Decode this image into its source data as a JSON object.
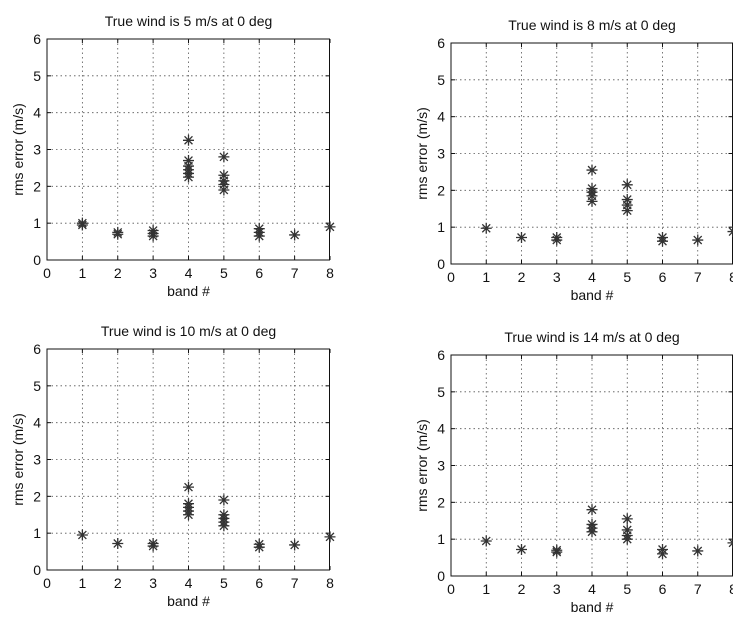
{
  "chart_data": [
    {
      "type": "scatter",
      "title": "True wind is 5 m/s at 0 deg",
      "xlabel": "band #",
      "ylabel": "rms error (m/s)",
      "xlim": [
        0,
        8
      ],
      "ylim": [
        0,
        6
      ],
      "xticks": [
        "0",
        "1",
        "2",
        "3",
        "4",
        "5",
        "6",
        "7",
        "8"
      ],
      "yticks": [
        "0",
        "1",
        "2",
        "3",
        "4",
        "5",
        "6"
      ],
      "grid": true,
      "points": [
        {
          "x": 1,
          "y": 0.95
        },
        {
          "x": 1,
          "y": 1.0
        },
        {
          "x": 2,
          "y": 0.7
        },
        {
          "x": 2,
          "y": 0.75
        },
        {
          "x": 3,
          "y": 0.65
        },
        {
          "x": 3,
          "y": 0.72
        },
        {
          "x": 3,
          "y": 0.8
        },
        {
          "x": 4,
          "y": 3.25
        },
        {
          "x": 4,
          "y": 2.7
        },
        {
          "x": 4,
          "y": 2.55
        },
        {
          "x": 4,
          "y": 2.45
        },
        {
          "x": 4,
          "y": 2.35
        },
        {
          "x": 4,
          "y": 2.25
        },
        {
          "x": 5,
          "y": 2.8
        },
        {
          "x": 5,
          "y": 2.3
        },
        {
          "x": 5,
          "y": 2.15
        },
        {
          "x": 5,
          "y": 2.05
        },
        {
          "x": 5,
          "y": 1.9
        },
        {
          "x": 6,
          "y": 0.85
        },
        {
          "x": 6,
          "y": 0.75
        },
        {
          "x": 6,
          "y": 0.65
        },
        {
          "x": 7,
          "y": 0.68
        },
        {
          "x": 8,
          "y": 0.9
        }
      ]
    },
    {
      "type": "scatter",
      "title": "True wind is 8 m/s at 0 deg",
      "xlabel": "band #",
      "ylabel": "rms error (m/s)",
      "xlim": [
        0,
        8
      ],
      "ylim": [
        0,
        6
      ],
      "xticks": [
        "0",
        "1",
        "2",
        "3",
        "4",
        "5",
        "6",
        "7",
        "8"
      ],
      "yticks": [
        "0",
        "1",
        "2",
        "3",
        "4",
        "5",
        "6"
      ],
      "grid": true,
      "points": [
        {
          "x": 1,
          "y": 0.97
        },
        {
          "x": 2,
          "y": 0.72
        },
        {
          "x": 3,
          "y": 0.65
        },
        {
          "x": 3,
          "y": 0.72
        },
        {
          "x": 4,
          "y": 2.55
        },
        {
          "x": 4,
          "y": 2.05
        },
        {
          "x": 4,
          "y": 1.95
        },
        {
          "x": 4,
          "y": 1.85
        },
        {
          "x": 4,
          "y": 1.7
        },
        {
          "x": 5,
          "y": 2.15
        },
        {
          "x": 5,
          "y": 1.75
        },
        {
          "x": 5,
          "y": 1.6
        },
        {
          "x": 5,
          "y": 1.45
        },
        {
          "x": 6,
          "y": 0.72
        },
        {
          "x": 6,
          "y": 0.62
        },
        {
          "x": 7,
          "y": 0.65
        },
        {
          "x": 8,
          "y": 0.88
        }
      ]
    },
    {
      "type": "scatter",
      "title": "True wind is 10 m/s at 0 deg",
      "xlabel": "band #",
      "ylabel": "rms error (m/s)",
      "xlim": [
        0,
        8
      ],
      "ylim": [
        0,
        6
      ],
      "xticks": [
        "0",
        "1",
        "2",
        "3",
        "4",
        "5",
        "6",
        "7",
        "8"
      ],
      "yticks": [
        "0",
        "1",
        "2",
        "3",
        "4",
        "5",
        "6"
      ],
      "grid": true,
      "points": [
        {
          "x": 1,
          "y": 0.95
        },
        {
          "x": 2,
          "y": 0.72
        },
        {
          "x": 3,
          "y": 0.65
        },
        {
          "x": 3,
          "y": 0.72
        },
        {
          "x": 4,
          "y": 2.25
        },
        {
          "x": 4,
          "y": 1.8
        },
        {
          "x": 4,
          "y": 1.7
        },
        {
          "x": 4,
          "y": 1.6
        },
        {
          "x": 4,
          "y": 1.5
        },
        {
          "x": 5,
          "y": 1.9
        },
        {
          "x": 5,
          "y": 1.5
        },
        {
          "x": 5,
          "y": 1.4
        },
        {
          "x": 5,
          "y": 1.3
        },
        {
          "x": 5,
          "y": 1.2
        },
        {
          "x": 6,
          "y": 0.7
        },
        {
          "x": 6,
          "y": 0.62
        },
        {
          "x": 7,
          "y": 0.68
        },
        {
          "x": 8,
          "y": 0.9
        }
      ]
    },
    {
      "type": "scatter",
      "title": "True wind is 14 m/s at 0 deg",
      "xlabel": "band #",
      "ylabel": "rms error (m/s)",
      "xlim": [
        0,
        8
      ],
      "ylim": [
        0,
        6
      ],
      "xticks": [
        "0",
        "1",
        "2",
        "3",
        "4",
        "5",
        "6",
        "7",
        "8"
      ],
      "yticks": [
        "0",
        "1",
        "2",
        "3",
        "4",
        "5",
        "6"
      ],
      "grid": true,
      "points": [
        {
          "x": 1,
          "y": 0.95
        },
        {
          "x": 2,
          "y": 0.72
        },
        {
          "x": 3,
          "y": 0.65
        },
        {
          "x": 3,
          "y": 0.7
        },
        {
          "x": 4,
          "y": 1.8
        },
        {
          "x": 4,
          "y": 1.4
        },
        {
          "x": 4,
          "y": 1.3
        },
        {
          "x": 4,
          "y": 1.2
        },
        {
          "x": 5,
          "y": 1.55
        },
        {
          "x": 5,
          "y": 1.25
        },
        {
          "x": 5,
          "y": 1.1
        },
        {
          "x": 5,
          "y": 1.0
        },
        {
          "x": 6,
          "y": 0.72
        },
        {
          "x": 6,
          "y": 0.6
        },
        {
          "x": 7,
          "y": 0.68
        },
        {
          "x": 8,
          "y": 0.9
        }
      ]
    }
  ]
}
